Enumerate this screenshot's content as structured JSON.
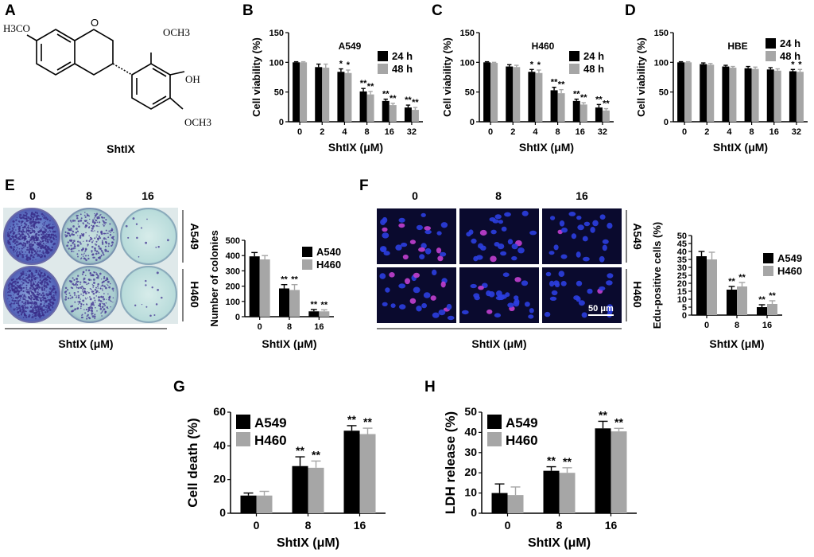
{
  "panel_labels": [
    "A",
    "B",
    "C",
    "D",
    "E",
    "F",
    "G",
    "H"
  ],
  "structure": {
    "name": "ShtIX",
    "labels": {
      "left": "H3CO",
      "ome_top": "OCH3",
      "oh": "OH",
      "ome_bottom": "OCH3"
    }
  },
  "plate": {
    "doses": [
      "0",
      "8",
      "16"
    ],
    "cells": [
      "A549",
      "H460"
    ],
    "axis_label": "ShtIX (μM)"
  },
  "micrographs": {
    "doses": [
      "0",
      "8",
      "16"
    ],
    "cells": [
      "A549",
      "H460"
    ],
    "scale_bar": "50 μm",
    "axis_label": "ShtIX (μM)"
  },
  "colors": {
    "series1": "#000000",
    "series2": "#a6a6a6"
  },
  "chart_data": [
    {
      "id": "B",
      "type": "bar",
      "title": "A549",
      "xlabel": "ShtIX (μM)",
      "ylabel": "Cell viability (%)",
      "categories": [
        "0",
        "2",
        "4",
        "8",
        "16",
        "32"
      ],
      "ylim": [
        0,
        150
      ],
      "yticks": [
        0,
        50,
        100,
        150
      ],
      "legend": {
        "position": "top-right"
      },
      "series": [
        {
          "name": "24 h",
          "values": [
            100,
            92,
            84,
            51,
            35,
            24
          ],
          "errors": [
            1,
            5,
            5,
            5,
            3,
            4
          ],
          "sig": [
            "",
            "",
            "*",
            "**",
            "**",
            "**"
          ]
        },
        {
          "name": "48 h",
          "values": [
            100,
            91,
            82,
            46,
            28,
            20
          ],
          "errors": [
            1,
            6,
            5,
            5,
            3,
            4
          ],
          "sig": [
            "",
            "",
            "*",
            "**",
            "**",
            "**"
          ]
        }
      ]
    },
    {
      "id": "C",
      "type": "bar",
      "title": "H460",
      "xlabel": "ShtIX (μM)",
      "ylabel": "Cell viability (%)",
      "categories": [
        "0",
        "2",
        "4",
        "8",
        "16",
        "32"
      ],
      "ylim": [
        0,
        150
      ],
      "yticks": [
        0,
        50,
        100,
        150
      ],
      "legend": {
        "position": "top-right"
      },
      "series": [
        {
          "name": "24 h",
          "values": [
            100,
            93,
            84,
            53,
            35,
            24
          ],
          "errors": [
            1,
            3,
            4,
            5,
            3,
            5
          ],
          "sig": [
            "",
            "",
            "*",
            "**",
            "**",
            "**"
          ]
        },
        {
          "name": "48 h",
          "values": [
            99,
            92,
            82,
            48,
            29,
            19
          ],
          "errors": [
            1,
            3,
            5,
            6,
            3,
            3
          ],
          "sig": [
            "",
            "",
            "*",
            "**",
            "**",
            "**"
          ]
        }
      ]
    },
    {
      "id": "D",
      "type": "bar",
      "title": "HBE",
      "xlabel": "ShtIX (μM)",
      "ylabel": "Cell viability (%)",
      "categories": [
        "0",
        "2",
        "4",
        "8",
        "16",
        "32"
      ],
      "ylim": [
        0,
        150
      ],
      "yticks": [
        0,
        50,
        100,
        150
      ],
      "legend": {
        "position": "top-right"
      },
      "series": [
        {
          "name": "24 h",
          "values": [
            100,
            97,
            93,
            90,
            88,
            85
          ],
          "errors": [
            1,
            2,
            2,
            3,
            3,
            3
          ],
          "sig": [
            "",
            "",
            "",
            "",
            "",
            "*"
          ]
        },
        {
          "name": "48 h",
          "values": [
            100,
            96,
            91,
            89,
            86,
            84
          ],
          "errors": [
            1,
            2,
            2,
            3,
            3,
            4
          ],
          "sig": [
            "",
            "",
            "",
            "",
            "",
            "*"
          ]
        }
      ]
    },
    {
      "id": "E",
      "type": "bar",
      "title": "",
      "xlabel": "ShtIX (μM)",
      "ylabel": "Number of colonies",
      "categories": [
        "0",
        "8",
        "16"
      ],
      "ylim": [
        0,
        500
      ],
      "yticks": [
        0,
        100,
        200,
        300,
        400,
        500
      ],
      "legend": {
        "position": "top-right"
      },
      "series": [
        {
          "name": "A540",
          "values": [
            395,
            185,
            35
          ],
          "errors": [
            25,
            25,
            12
          ],
          "sig": [
            "",
            "**",
            "**"
          ]
        },
        {
          "name": "H460",
          "values": [
            375,
            175,
            35
          ],
          "errors": [
            25,
            35,
            10
          ],
          "sig": [
            "",
            "**",
            "**"
          ]
        }
      ]
    },
    {
      "id": "F",
      "type": "bar",
      "title": "",
      "xlabel": "ShtIX (μM)",
      "ylabel": "Edu-positive cells  (%)",
      "categories": [
        "0",
        "8",
        "16"
      ],
      "ylim": [
        0,
        50
      ],
      "yticks": [
        0,
        5,
        10,
        15,
        20,
        25,
        30,
        35,
        40,
        45,
        50
      ],
      "legend": {
        "position": "top-right"
      },
      "series": [
        {
          "name": "A549",
          "values": [
            37,
            16,
            5
          ],
          "errors": [
            3,
            2,
            1.5
          ],
          "sig": [
            "",
            "**",
            "**"
          ]
        },
        {
          "name": "H460",
          "values": [
            35,
            18,
            7
          ],
          "errors": [
            4.5,
            2.5,
            2
          ],
          "sig": [
            "",
            "**",
            "**"
          ]
        }
      ]
    },
    {
      "id": "G",
      "type": "bar",
      "title": "",
      "xlabel": "ShtIX (μM)",
      "ylabel": "Cell death (%)",
      "categories": [
        "0",
        "8",
        "16"
      ],
      "ylim": [
        0,
        60
      ],
      "yticks": [
        0,
        20,
        40,
        60
      ],
      "legend": {
        "position": "top-left"
      },
      "series": [
        {
          "name": "A549",
          "values": [
            10.5,
            28,
            49
          ],
          "errors": [
            1.5,
            5.5,
            3
          ],
          "sig": [
            "",
            "**",
            "**"
          ]
        },
        {
          "name": "H460",
          "values": [
            10.5,
            27,
            47
          ],
          "errors": [
            2.5,
            4,
            3.5
          ],
          "sig": [
            "",
            "**",
            "**"
          ]
        }
      ]
    },
    {
      "id": "H",
      "type": "bar",
      "title": "",
      "xlabel": "ShtIX (μM)",
      "ylabel": "LDH release  (%)",
      "categories": [
        "0",
        "8",
        "16"
      ],
      "ylim": [
        0,
        50
      ],
      "yticks": [
        0,
        10,
        20,
        30,
        40,
        50
      ],
      "legend": {
        "position": "top-left"
      },
      "series": [
        {
          "name": "A549",
          "values": [
            10,
            21,
            42
          ],
          "errors": [
            4.5,
            2,
            3.5
          ],
          "sig": [
            "",
            "**",
            "**"
          ]
        },
        {
          "name": "H460",
          "values": [
            9,
            20,
            40.5
          ],
          "errors": [
            4,
            2.5,
            1.5
          ],
          "sig": [
            "",
            "**",
            "**"
          ]
        }
      ]
    }
  ]
}
